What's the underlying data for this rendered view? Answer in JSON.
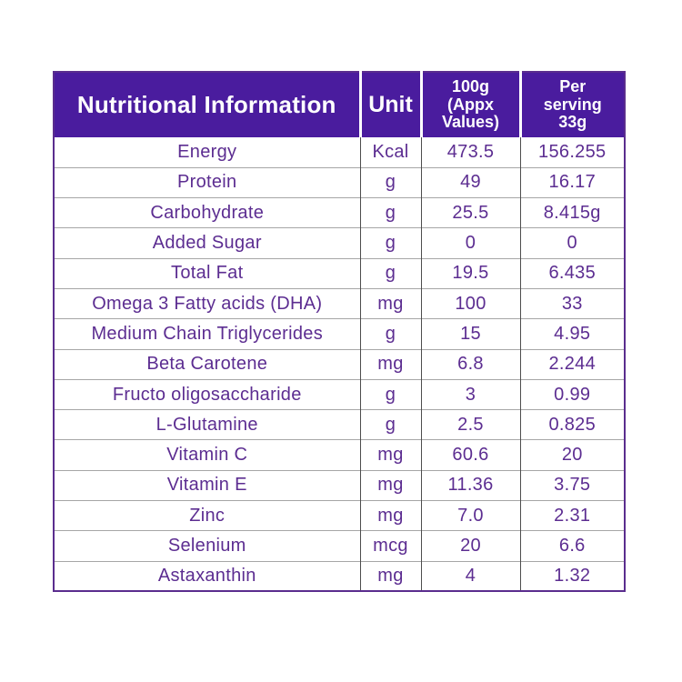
{
  "table": {
    "header": {
      "name_label": "Nutritional Information",
      "unit_label": "Unit",
      "per_100g_label": "100g\n(Appx\nValues)",
      "per_serving_label": "Per\nserving\n33g"
    },
    "rows": [
      {
        "name": "Energy",
        "unit": "Kcal",
        "per_100g": "473.5",
        "per_serving": "156.255"
      },
      {
        "name": "Protein",
        "unit": "g",
        "per_100g": "49",
        "per_serving": "16.17"
      },
      {
        "name": "Carbohydrate",
        "unit": "g",
        "per_100g": "25.5",
        "per_serving": "8.415g"
      },
      {
        "name": "Added Sugar",
        "unit": "g",
        "per_100g": "0",
        "per_serving": "0"
      },
      {
        "name": "Total Fat",
        "unit": "g",
        "per_100g": "19.5",
        "per_serving": "6.435"
      },
      {
        "name": "Omega 3 Fatty acids (DHA)",
        "unit": "mg",
        "per_100g": "100",
        "per_serving": "33"
      },
      {
        "name": "Medium Chain Triglycerides",
        "unit": "g",
        "per_100g": "15",
        "per_serving": "4.95"
      },
      {
        "name": "Beta Carotene",
        "unit": "mg",
        "per_100g": "6.8",
        "per_serving": "2.244"
      },
      {
        "name": "Fructo oligosaccharide",
        "unit": "g",
        "per_100g": "3",
        "per_serving": "0.99"
      },
      {
        "name": "L-Glutamine",
        "unit": "g",
        "per_100g": "2.5",
        "per_serving": "0.825"
      },
      {
        "name": "Vitamin C",
        "unit": "mg",
        "per_100g": "60.6",
        "per_serving": "20"
      },
      {
        "name": "Vitamin E",
        "unit": "mg",
        "per_100g": "11.36",
        "per_serving": "3.75"
      },
      {
        "name": "Zinc",
        "unit": "mg",
        "per_100g": "7.0",
        "per_serving": "2.31"
      },
      {
        "name": "Selenium",
        "unit": "mcg",
        "per_100g": "20",
        "per_serving": "6.6"
      },
      {
        "name": "Astaxanthin",
        "unit": "mg",
        "per_100g": "4",
        "per_serving": "1.32"
      }
    ],
    "colors": {
      "header_background": "#4a1c9e",
      "header_text": "#ffffff",
      "body_text": "#5c2d91",
      "outer_border": "#5a2d8e",
      "vertical_gridline": "#4d4d4d",
      "horizontal_gridline": "#a6a6a6"
    }
  }
}
